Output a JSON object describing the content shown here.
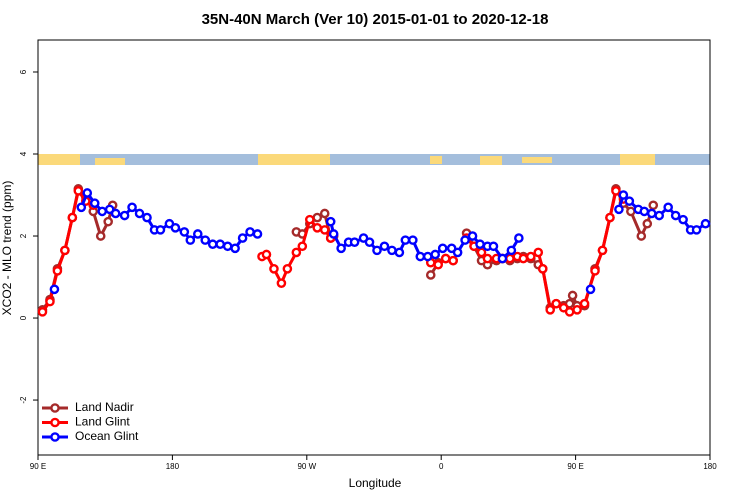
{
  "chart_data": {
    "type": "line",
    "title": "35N-40N March (Ver 10)   2015-01-01 to 2020-12-18",
    "x_label": "Longitude",
    "y_label": "XCO2 - MLO trend (ppm)",
    "xlim": [
      90,
      540
    ],
    "ylim": [
      -3.34,
      6.78
    ],
    "xticks": [
      {
        "value": 90,
        "label": "90 E"
      },
      180,
      {
        "value": 270,
        "label": "90 W"
      },
      {
        "value": 360,
        "label": "0"
      },
      {
        "value": 450,
        "label": "90 E"
      },
      {
        "value": 540,
        "label": "180"
      }
    ],
    "yticks": [
      -2,
      0,
      2,
      4,
      6
    ],
    "legend": "bottom-left",
    "series": [
      {
        "name": "Land Nadir",
        "color": "#a52a2a",
        "x": [
          93,
          98,
          103,
          108,
          113,
          117,
          122,
          127,
          132,
          137,
          140,
          200,
          263,
          267,
          272,
          277,
          282,
          286,
          288,
          320,
          353,
          358,
          363,
          368,
          372,
          377,
          382,
          387,
          391,
          397,
          401,
          406,
          411,
          415,
          420,
          425,
          428,
          433,
          437,
          442,
          446,
          448,
          451,
          456,
          463,
          468,
          473,
          477,
          482,
          487,
          494,
          498,
          502
        ],
        "values": [
          0.2,
          0.45,
          1.2,
          1.65,
          2.45,
          3.15,
          2.95,
          2.6,
          2.0,
          2.35,
          2.75,
          null,
          2.1,
          2.05,
          2.3,
          2.45,
          2.55,
          1.95,
          2.0,
          null,
          1.05,
          1.35,
          1.45,
          1.4,
          null,
          2.07,
          1.75,
          1.4,
          1.3,
          1.4,
          1.45,
          1.4,
          1.45,
          1.5,
          1.45,
          1.3,
          1.2,
          0.25,
          0.35,
          0.3,
          0.35,
          0.55,
          0.3,
          0.3,
          1.2,
          1.65,
          2.45,
          3.15,
          2.8,
          2.6,
          2.0,
          2.3,
          2.75
        ]
      },
      {
        "name": "Land Glint",
        "color": "#ff0000",
        "x": [
          93,
          98,
          103,
          108,
          113,
          117,
          122,
          127,
          180,
          240,
          243,
          248,
          253,
          257,
          263,
          267,
          272,
          277,
          282,
          286,
          320,
          353,
          358,
          363,
          368,
          372,
          377,
          382,
          387,
          391,
          397,
          401,
          406,
          411,
          415,
          420,
          425,
          428,
          433,
          437,
          442,
          446,
          451,
          456,
          463,
          468,
          473,
          477,
          482
        ],
        "values": [
          0.15,
          0.4,
          1.15,
          1.65,
          2.45,
          3.1,
          2.85,
          2.75,
          null,
          1.5,
          1.55,
          1.2,
          0.85,
          1.2,
          1.6,
          1.75,
          2.4,
          2.2,
          2.15,
          1.95,
          null,
          1.35,
          1.3,
          1.45,
          1.4,
          null,
          1.95,
          1.75,
          1.6,
          1.45,
          1.45,
          1.45,
          1.45,
          1.5,
          1.45,
          1.5,
          1.6,
          1.2,
          0.2,
          0.35,
          0.25,
          0.15,
          0.2,
          0.35,
          1.15,
          1.65,
          2.45,
          3.1,
          2.9
        ]
      },
      {
        "name": "Ocean Glint",
        "color": "#0000ff",
        "x": [
          101,
          110,
          119,
          123,
          128,
          133,
          138,
          142,
          148,
          153,
          158,
          163,
          168,
          172,
          178,
          182,
          188,
          192,
          197,
          202,
          207,
          212,
          217,
          222,
          227,
          232,
          237,
          260,
          286,
          288,
          293,
          298,
          302,
          308,
          312,
          317,
          322,
          327,
          332,
          336,
          341,
          346,
          351,
          356,
          361,
          367,
          371,
          376,
          381,
          386,
          391,
          395,
          401,
          407,
          412,
          440,
          460,
          470,
          479,
          482,
          486,
          492,
          496,
          501,
          506,
          512,
          517,
          522,
          527,
          531,
          537
        ],
        "values": [
          0.7,
          null,
          2.7,
          3.05,
          2.8,
          2.6,
          2.65,
          2.55,
          2.5,
          2.7,
          2.55,
          2.45,
          2.15,
          2.15,
          2.3,
          2.2,
          2.1,
          1.9,
          2.05,
          1.9,
          1.8,
          1.8,
          1.75,
          1.7,
          1.95,
          2.1,
          2.05,
          null,
          2.35,
          2.05,
          1.7,
          1.85,
          1.85,
          1.95,
          1.85,
          1.65,
          1.75,
          1.65,
          1.6,
          1.9,
          1.9,
          1.5,
          1.5,
          1.55,
          1.7,
          1.7,
          1.6,
          1.9,
          2.0,
          1.8,
          1.75,
          1.75,
          1.45,
          1.65,
          1.95,
          null,
          0.7,
          null,
          2.65,
          3.0,
          2.85,
          2.65,
          2.6,
          2.55,
          2.5,
          2.7,
          2.5,
          2.4,
          2.15,
          2.15,
          2.3
        ]
      }
    ]
  }
}
